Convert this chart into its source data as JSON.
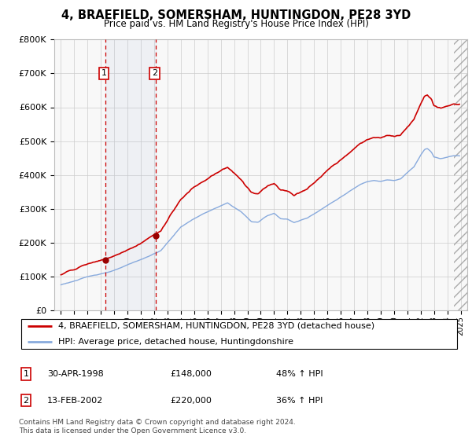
{
  "title": "4, BRAEFIELD, SOMERSHAM, HUNTINGDON, PE28 3YD",
  "subtitle": "Price paid vs. HM Land Registry's House Price Index (HPI)",
  "legend_line1": "4, BRAEFIELD, SOMERSHAM, HUNTINGDON, PE28 3YD (detached house)",
  "legend_line2": "HPI: Average price, detached house, Huntingdonshire",
  "sale1_date": "30-APR-1998",
  "sale1_price": "£148,000",
  "sale1_hpi": "48% ↑ HPI",
  "sale1_year": 1998.33,
  "sale1_value": 148000,
  "sale2_date": "13-FEB-2002",
  "sale2_price": "£220,000",
  "sale2_hpi": "36% ↑ HPI",
  "sale2_year": 2002.12,
  "sale2_value": 220000,
  "footer": "Contains HM Land Registry data © Crown copyright and database right 2024.\nThis data is licensed under the Open Government Licence v3.0.",
  "price_line_color": "#cc0000",
  "hpi_line_color": "#88aadd",
  "sale_marker_color": "#990000",
  "background_color": "#ffffff",
  "grid_color": "#cccccc",
  "ylim_max": 800000,
  "xlim_start": 1994.5,
  "xlim_end": 2025.5
}
